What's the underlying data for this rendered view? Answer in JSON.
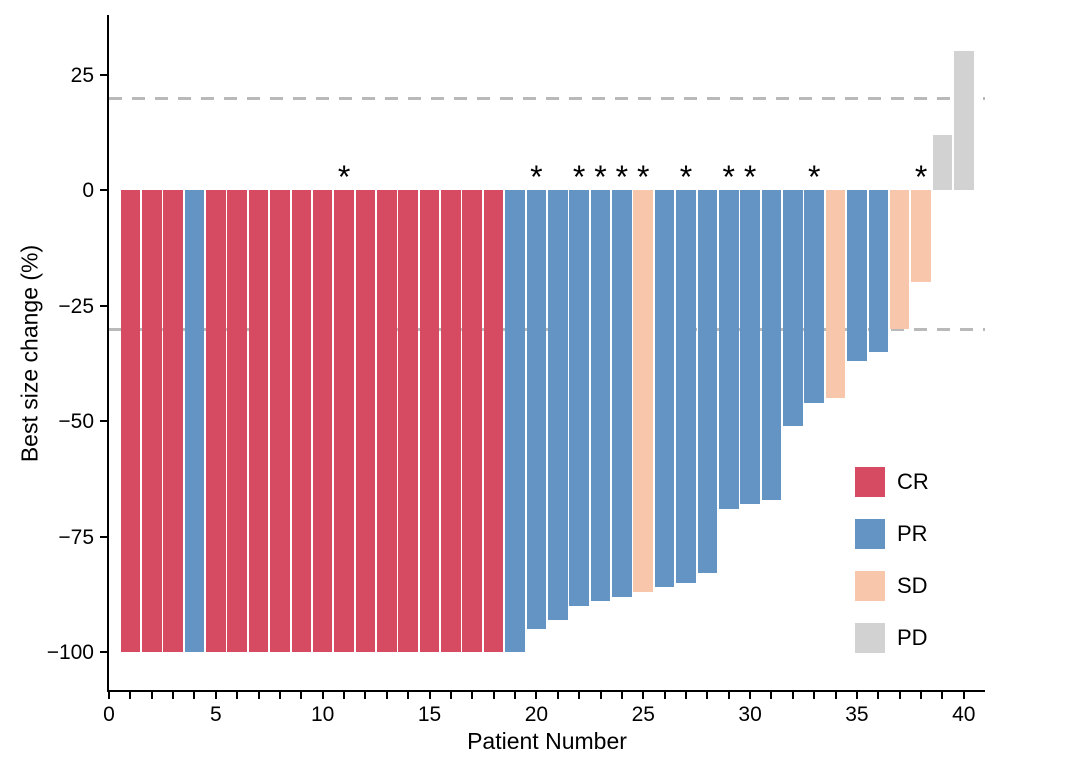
{
  "chart_data": {
    "type": "bar",
    "title": "",
    "xlabel": "Patient Number",
    "ylabel": "Best size change (%)",
    "x_tick_label_values": [
      0,
      5,
      10,
      15,
      20,
      25,
      30,
      35,
      40
    ],
    "x_minor_ticks_every": 1,
    "x_axis_range": [
      0,
      41
    ],
    "y_tick_labels": [
      "25",
      "0",
      "−25",
      "−50",
      "−75",
      "−100"
    ],
    "y_tick_values": [
      25,
      0,
      -25,
      -50,
      -75,
      -100
    ],
    "ylim": [
      -108,
      38
    ],
    "grid": "off",
    "reference_lines": {
      "upper_dashed": 20,
      "lower_dashed": -30,
      "style": "dashed",
      "color": "#b9b9b9"
    },
    "legend": {
      "position": "right-inside",
      "items": [
        {
          "label": "CR",
          "color": "#d64b62"
        },
        {
          "label": "PR",
          "color": "#6494c3"
        },
        {
          "label": "SD",
          "color": "#f8c6ab"
        },
        {
          "label": "PD",
          "color": "#d2d2d2"
        }
      ]
    },
    "series": [
      {
        "name": "Best size change (%)",
        "points": [
          {
            "patient": 1,
            "value": -100,
            "response": "CR",
            "star": false
          },
          {
            "patient": 2,
            "value": -100,
            "response": "CR",
            "star": false
          },
          {
            "patient": 3,
            "value": -100,
            "response": "CR",
            "star": false
          },
          {
            "patient": 4,
            "value": -100,
            "response": "PR",
            "star": false
          },
          {
            "patient": 5,
            "value": -100,
            "response": "CR",
            "star": false
          },
          {
            "patient": 6,
            "value": -100,
            "response": "CR",
            "star": false
          },
          {
            "patient": 7,
            "value": -100,
            "response": "CR",
            "star": false
          },
          {
            "patient": 8,
            "value": -100,
            "response": "CR",
            "star": false
          },
          {
            "patient": 9,
            "value": -100,
            "response": "CR",
            "star": false
          },
          {
            "patient": 10,
            "value": -100,
            "response": "CR",
            "star": false
          },
          {
            "patient": 11,
            "value": -100,
            "response": "CR",
            "star": true
          },
          {
            "patient": 12,
            "value": -100,
            "response": "CR",
            "star": false
          },
          {
            "patient": 13,
            "value": -100,
            "response": "CR",
            "star": false
          },
          {
            "patient": 14,
            "value": -100,
            "response": "CR",
            "star": false
          },
          {
            "patient": 15,
            "value": -100,
            "response": "CR",
            "star": false
          },
          {
            "patient": 16,
            "value": -100,
            "response": "CR",
            "star": false
          },
          {
            "patient": 17,
            "value": -100,
            "response": "CR",
            "star": false
          },
          {
            "patient": 18,
            "value": -100,
            "response": "CR",
            "star": false
          },
          {
            "patient": 19,
            "value": -100,
            "response": "PR",
            "star": false
          },
          {
            "patient": 20,
            "value": -95,
            "response": "PR",
            "star": true
          },
          {
            "patient": 21,
            "value": -93,
            "response": "PR",
            "star": false
          },
          {
            "patient": 22,
            "value": -90,
            "response": "PR",
            "star": true
          },
          {
            "patient": 23,
            "value": -89,
            "response": "PR",
            "star": true
          },
          {
            "patient": 24,
            "value": -88,
            "response": "PR",
            "star": true
          },
          {
            "patient": 25,
            "value": -87,
            "response": "SD",
            "star": true
          },
          {
            "patient": 26,
            "value": -86,
            "response": "PR",
            "star": false
          },
          {
            "patient": 27,
            "value": -85,
            "response": "PR",
            "star": true
          },
          {
            "patient": 28,
            "value": -83,
            "response": "PR",
            "star": false
          },
          {
            "patient": 29,
            "value": -69,
            "response": "PR",
            "star": true
          },
          {
            "patient": 30,
            "value": -68,
            "response": "PR",
            "star": true
          },
          {
            "patient": 31,
            "value": -67,
            "response": "PR",
            "star": false
          },
          {
            "patient": 32,
            "value": -51,
            "response": "PR",
            "star": false
          },
          {
            "patient": 33,
            "value": -46,
            "response": "PR",
            "star": true
          },
          {
            "patient": 34,
            "value": -45,
            "response": "SD",
            "star": false
          },
          {
            "patient": 35,
            "value": -37,
            "response": "PR",
            "star": false
          },
          {
            "patient": 36,
            "value": -35,
            "response": "PR",
            "star": false
          },
          {
            "patient": 37,
            "value": -30,
            "response": "SD",
            "star": false
          },
          {
            "patient": 38,
            "value": -20,
            "response": "SD",
            "star": true
          },
          {
            "patient": 39,
            "value": 12,
            "response": "PD",
            "star": false
          },
          {
            "patient": 40,
            "value": 30,
            "response": "PD",
            "star": false
          }
        ]
      }
    ]
  }
}
